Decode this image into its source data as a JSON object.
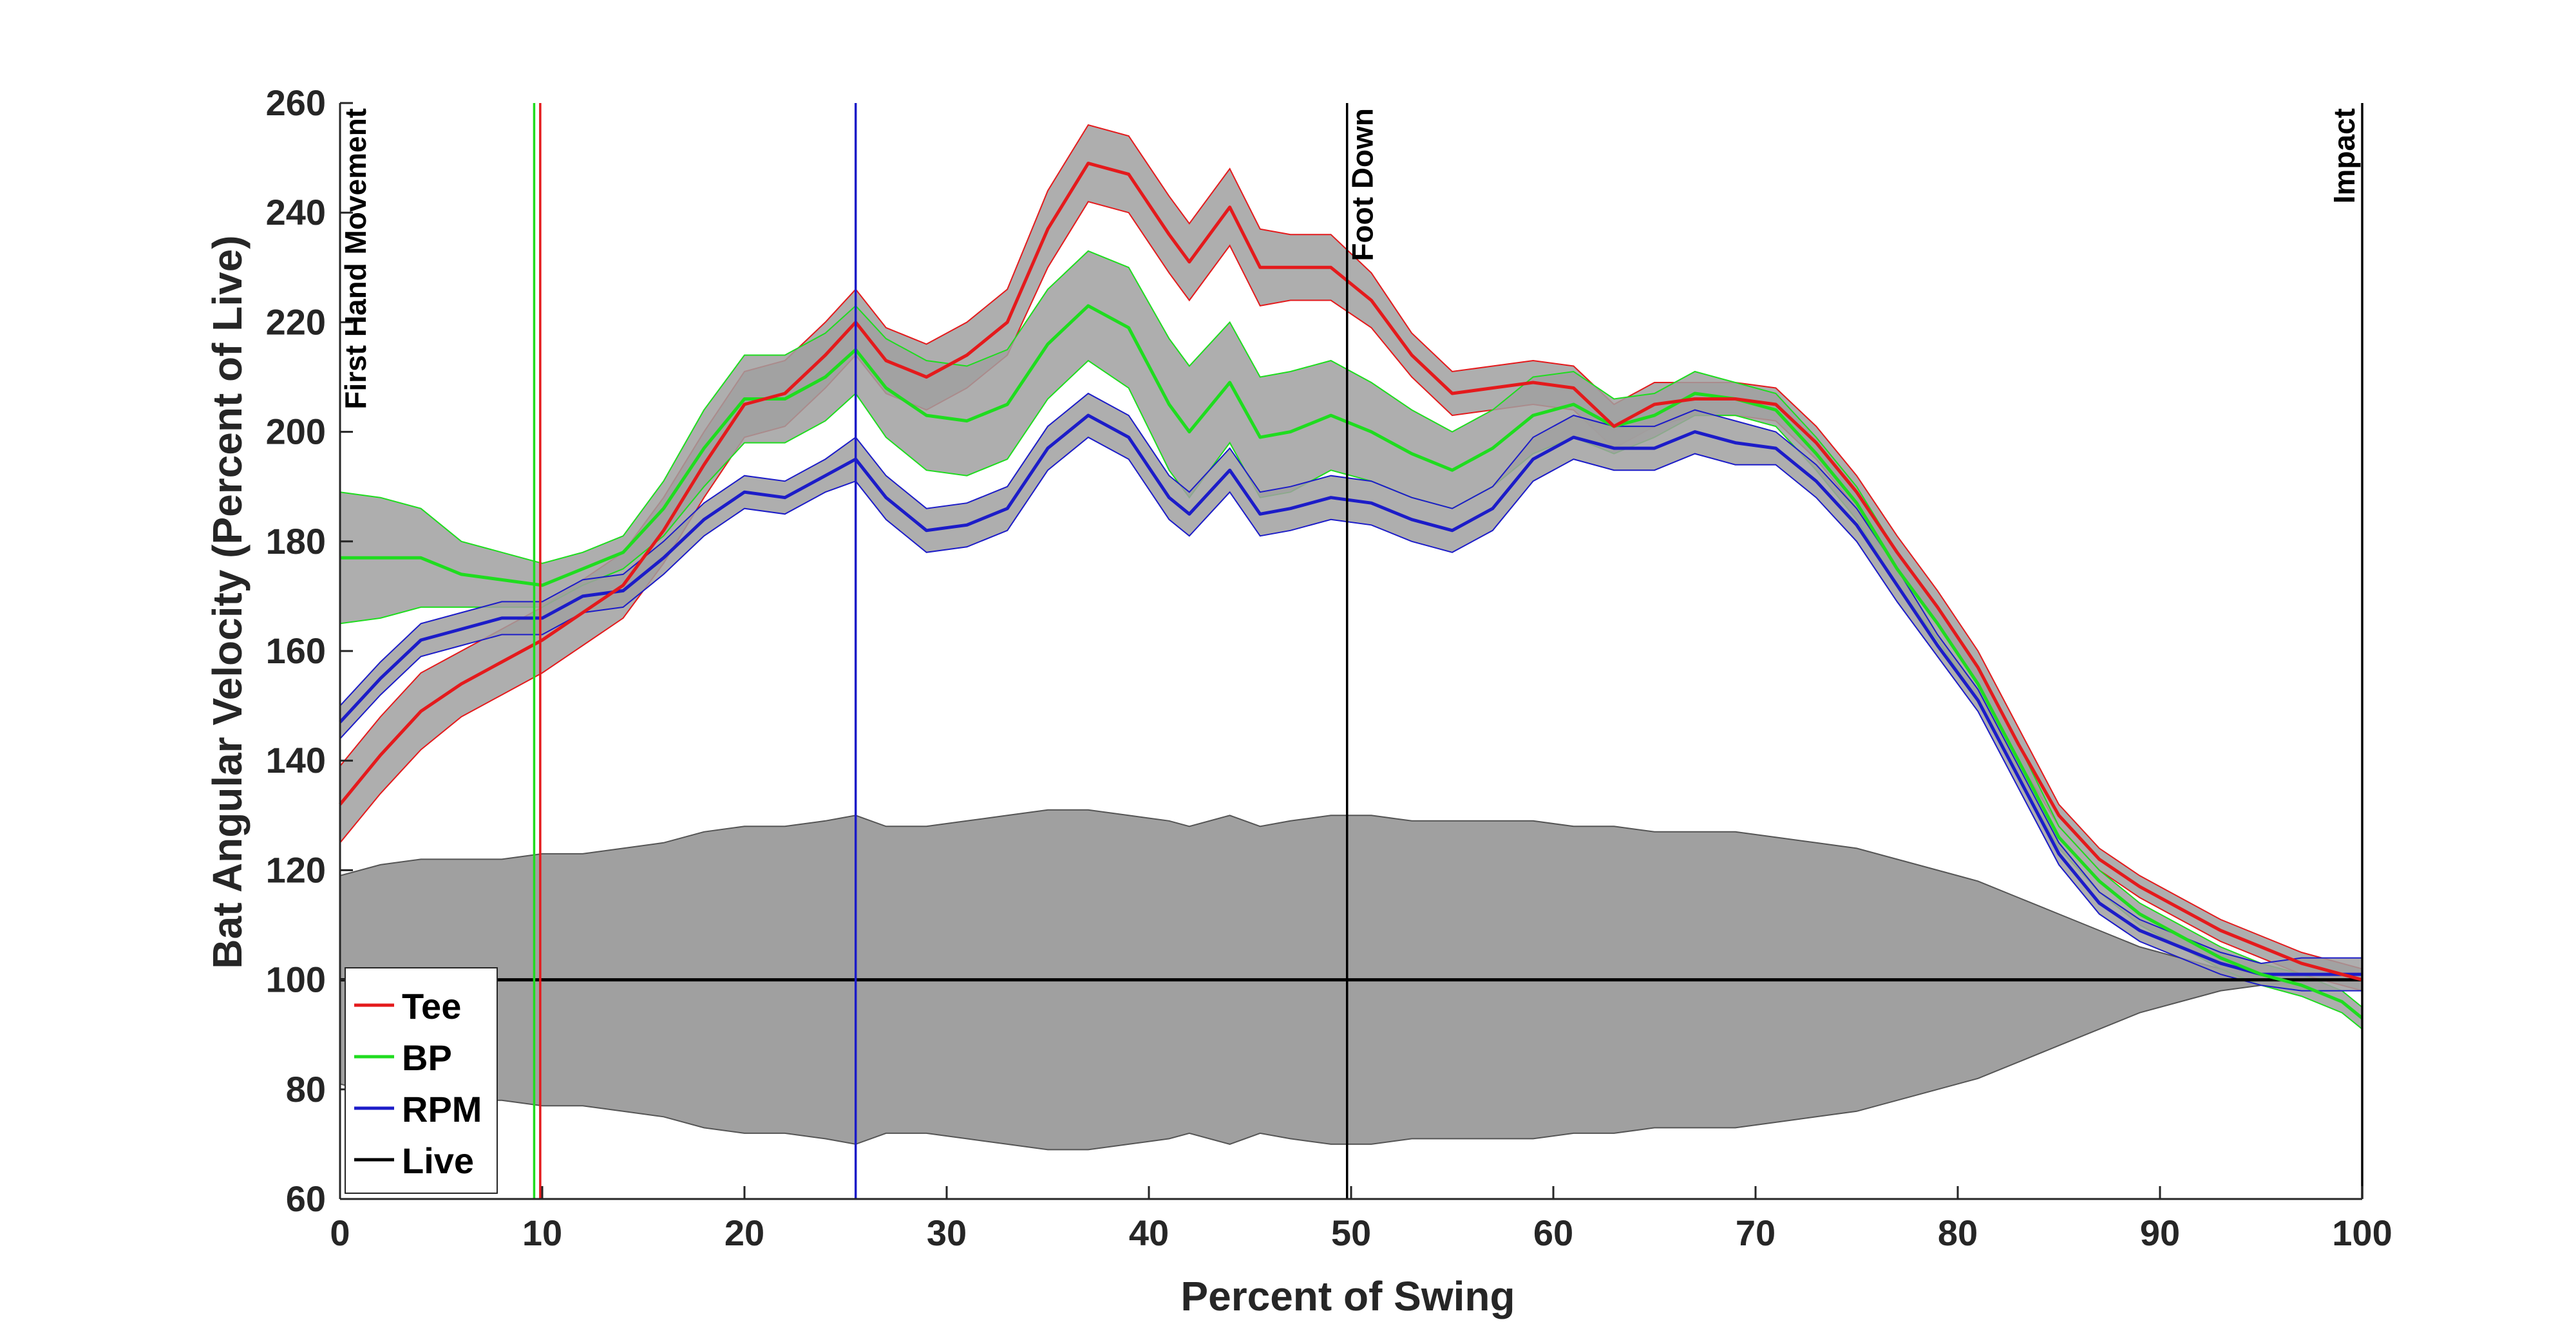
{
  "chart_data": {
    "type": "line",
    "xlabel": "Percent of Swing",
    "ylabel": "Bat Angular Velocity (Percent of Live)",
    "xlim": [
      0,
      100
    ],
    "ylim": [
      60,
      260
    ],
    "xticks": [
      "0",
      "10",
      "20",
      "30",
      "40",
      "50",
      "60",
      "70",
      "80",
      "90",
      "100"
    ],
    "yticks": [
      "60",
      "80",
      "100",
      "120",
      "140",
      "160",
      "180",
      "200",
      "220",
      "240",
      "260"
    ],
    "grid": false,
    "legend_position": "bottom-left",
    "colors": {
      "Tee": "#e41a1c",
      "BP": "#1fdc1f",
      "RPM": "#1c1cc8",
      "Live": "#000000",
      "band": "#a0a0a0"
    },
    "x": [
      0,
      2,
      4,
      6,
      8,
      10,
      12,
      14,
      16,
      18,
      20,
      22,
      24,
      25.5,
      27,
      29,
      31,
      33,
      35,
      37,
      39,
      41,
      42,
      44,
      45.5,
      47,
      49,
      51,
      53,
      55,
      57,
      59,
      61,
      63,
      65,
      67,
      69,
      71,
      73,
      75,
      77,
      79,
      81,
      83,
      85,
      87,
      89,
      91,
      93,
      95,
      97,
      99,
      100
    ],
    "series": [
      {
        "name": "Tee",
        "values": [
          132,
          141,
          149,
          154,
          158,
          162,
          167,
          172,
          182,
          194,
          205,
          207,
          214,
          220,
          213,
          210,
          214,
          220,
          237,
          249,
          247,
          236,
          231,
          241,
          230,
          230,
          230,
          224,
          214,
          207,
          208,
          209,
          208,
          201,
          205,
          206,
          206,
          205,
          198,
          189,
          178,
          168,
          157,
          143,
          130,
          122,
          117,
          113,
          109,
          106,
          103,
          101,
          100
        ],
        "sd": [
          7,
          7,
          7,
          6,
          6,
          6,
          6,
          6,
          6,
          6,
          6,
          6,
          6,
          6,
          6,
          6,
          6,
          6,
          7,
          7,
          7,
          7,
          7,
          7,
          7,
          6,
          6,
          5,
          4,
          4,
          4,
          4,
          4,
          4,
          4,
          3,
          3,
          3,
          3,
          3,
          3,
          3,
          3,
          3,
          2,
          2,
          2,
          2,
          2,
          2,
          2,
          2,
          2
        ]
      },
      {
        "name": "BP",
        "values": [
          177,
          177,
          177,
          174,
          173,
          172,
          175,
          178,
          186,
          197,
          206,
          206,
          210,
          215,
          208,
          203,
          202,
          205,
          216,
          223,
          219,
          205,
          200,
          209,
          199,
          200,
          203,
          200,
          196,
          193,
          197,
          203,
          205,
          201,
          203,
          207,
          206,
          204,
          196,
          187,
          175,
          165,
          154,
          140,
          126,
          118,
          112,
          108,
          104,
          101,
          99,
          96,
          93
        ],
        "sd": [
          12,
          11,
          9,
          6,
          5,
          4,
          3,
          3,
          5,
          7,
          8,
          8,
          8,
          8,
          9,
          10,
          10,
          10,
          10,
          10,
          11,
          12,
          12,
          11,
          11,
          11,
          10,
          9,
          8,
          7,
          7,
          7,
          6,
          5,
          4,
          4,
          3,
          3,
          3,
          3,
          3,
          3,
          3,
          3,
          2,
          2,
          2,
          2,
          2,
          2,
          2,
          2,
          2
        ]
      },
      {
        "name": "RPM",
        "values": [
          147,
          155,
          162,
          164,
          166,
          166,
          170,
          171,
          177,
          184,
          189,
          188,
          192,
          195,
          188,
          182,
          183,
          186,
          197,
          203,
          199,
          188,
          185,
          193,
          185,
          186,
          188,
          187,
          184,
          182,
          186,
          195,
          199,
          197,
          197,
          200,
          198,
          197,
          191,
          183,
          172,
          161,
          151,
          137,
          123,
          114,
          109,
          106,
          103,
          101,
          101,
          101,
          101
        ],
        "sd": [
          3,
          3,
          3,
          3,
          3,
          3,
          3,
          3,
          3,
          3,
          3,
          3,
          3,
          4,
          4,
          4,
          4,
          4,
          4,
          4,
          4,
          4,
          4,
          4,
          4,
          4,
          4,
          4,
          4,
          4,
          4,
          4,
          4,
          4,
          4,
          4,
          4,
          3,
          3,
          3,
          3,
          2,
          2,
          2,
          2,
          2,
          2,
          2,
          2,
          2,
          3,
          3,
          3
        ]
      },
      {
        "name": "Live",
        "values": [
          100,
          100,
          100,
          100,
          100,
          100,
          100,
          100,
          100,
          100,
          100,
          100,
          100,
          100,
          100,
          100,
          100,
          100,
          100,
          100,
          100,
          100,
          100,
          100,
          100,
          100,
          100,
          100,
          100,
          100,
          100,
          100,
          100,
          100,
          100,
          100,
          100,
          100,
          100,
          100,
          100,
          100,
          100,
          100,
          100,
          100,
          100,
          100,
          100,
          100,
          100,
          100,
          100
        ],
        "sd": [
          19,
          21,
          22,
          22,
          22,
          23,
          23,
          24,
          25,
          27,
          28,
          28,
          29,
          30,
          28,
          28,
          29,
          30,
          31,
          31,
          30,
          29,
          28,
          30,
          28,
          29,
          30,
          30,
          29,
          29,
          29,
          29,
          28,
          28,
          27,
          27,
          27,
          26,
          25,
          24,
          22,
          20,
          18,
          15,
          12,
          9,
          6,
          4,
          2,
          1,
          0.5,
          0,
          0
        ]
      }
    ],
    "vertical_lines": [
      {
        "x": 9.6,
        "color": "#1fdc1f"
      },
      {
        "x": 9.9,
        "color": "#e41a1c"
      },
      {
        "x": 25.5,
        "color": "#1c1cc8"
      },
      {
        "x": 49.8,
        "color": "#000000"
      },
      {
        "x": 100,
        "color": "#000000"
      }
    ],
    "event_labels": [
      {
        "x": 0,
        "text": "First Hand Movement"
      },
      {
        "x": 49.8,
        "text": "Foot Down"
      },
      {
        "x": 100,
        "text": "Impact"
      }
    ],
    "legend": [
      "Tee",
      "BP",
      "RPM",
      "Live"
    ]
  }
}
